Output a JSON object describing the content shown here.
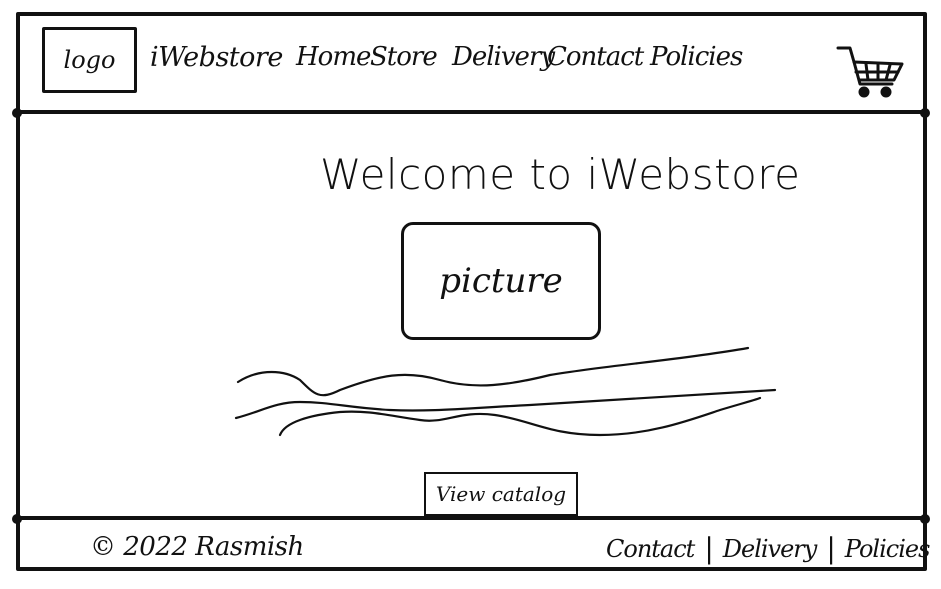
{
  "header": {
    "logo_label": "logo",
    "brand_name": "iWebstore",
    "nav_items": [
      {
        "label": "Home"
      },
      {
        "label": "Store"
      },
      {
        "label": "Delivery"
      },
      {
        "label": "Contact"
      },
      {
        "label": "Policies"
      }
    ],
    "cart_icon": "shopping-cart-icon"
  },
  "main": {
    "welcome_text": "Welcome to iWebstore",
    "picture_label": "picture",
    "view_button_label": "View catalog"
  },
  "footer": {
    "copyright": "© 2022 Rasmish",
    "links": [
      {
        "label": "Contact"
      },
      {
        "label": "Delivery"
      },
      {
        "label": "Policies"
      }
    ],
    "separator": "|"
  }
}
